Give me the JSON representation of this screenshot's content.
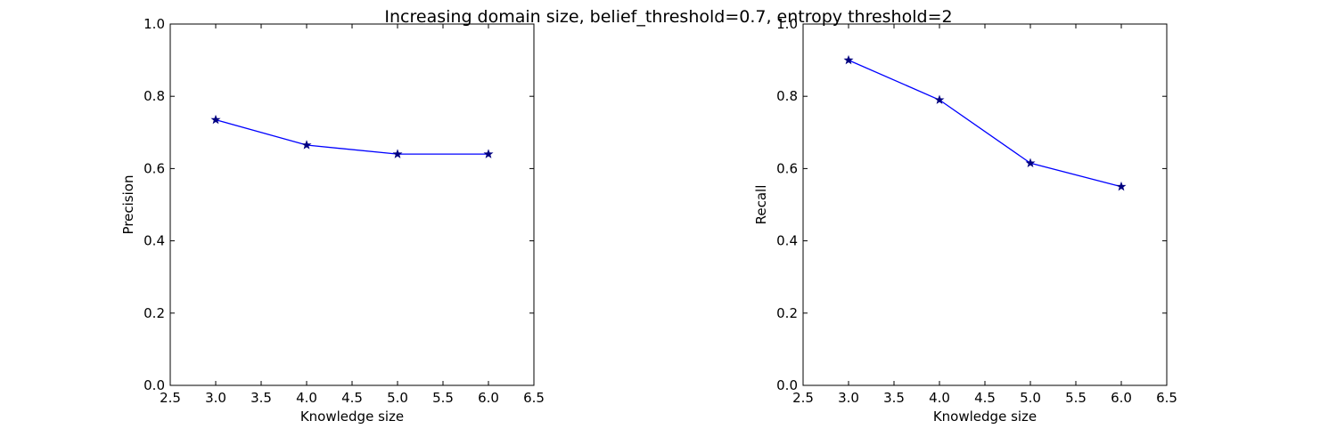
{
  "figure": {
    "suptitle": "Increasing domain size, belief_threshold=0.7, entropy threshold=2"
  },
  "colors": {
    "line": "#0000ff",
    "marker": "#000080",
    "axes": "#000000",
    "background": "#ffffff"
  },
  "chart_data": [
    {
      "type": "line",
      "title": "",
      "xlabel": "Knowledge size",
      "ylabel": "Precision",
      "xlim": [
        2.5,
        6.5
      ],
      "ylim": [
        0.0,
        1.0
      ],
      "xticks": [
        "2.5",
        "3.0",
        "3.5",
        "4.0",
        "4.5",
        "5.0",
        "5.5",
        "6.0",
        "6.5"
      ],
      "yticks": [
        "0.0",
        "0.2",
        "0.4",
        "0.6",
        "0.8",
        "1.0"
      ],
      "grid": false,
      "marker": "star",
      "x": [
        3.0,
        4.0,
        5.0,
        6.0
      ],
      "y": [
        0.735,
        0.665,
        0.64,
        0.64
      ]
    },
    {
      "type": "line",
      "title": "",
      "xlabel": "Knowledge size",
      "ylabel": "Recall",
      "xlim": [
        2.5,
        6.5
      ],
      "ylim": [
        0.0,
        1.0
      ],
      "xticks": [
        "2.5",
        "3.0",
        "3.5",
        "4.0",
        "4.5",
        "5.0",
        "5.5",
        "6.0",
        "6.5"
      ],
      "yticks": [
        "0.0",
        "0.2",
        "0.4",
        "0.6",
        "0.8",
        "1.0"
      ],
      "grid": false,
      "marker": "star",
      "x": [
        3.0,
        4.0,
        5.0,
        6.0
      ],
      "y": [
        0.9,
        0.79,
        0.615,
        0.55
      ]
    }
  ]
}
